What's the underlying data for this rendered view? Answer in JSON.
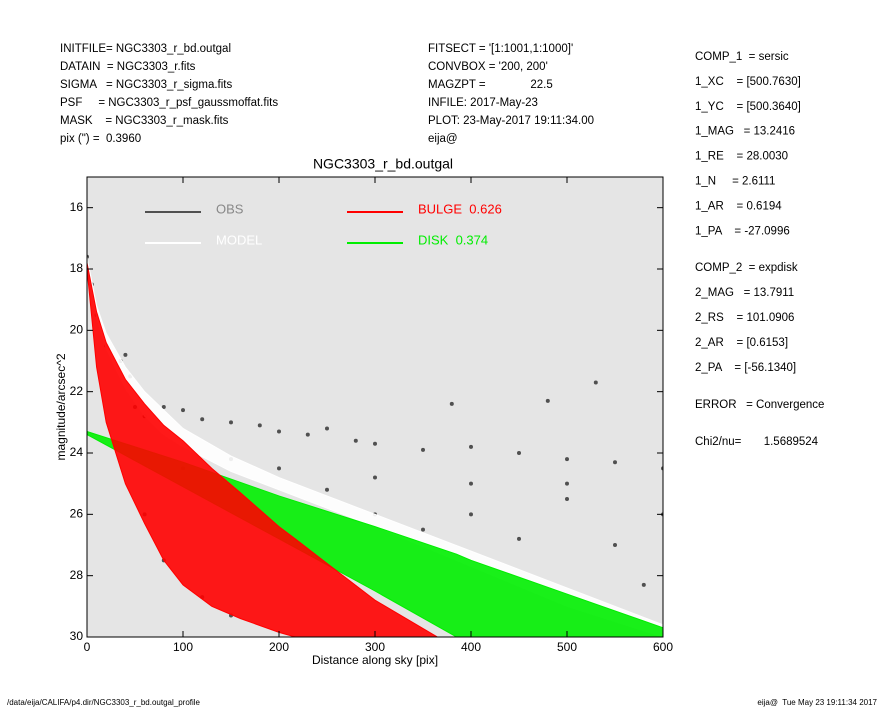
{
  "header": {
    "left": [
      "INITFILE= NGC3303_r_bd.outgal",
      "DATAIN  = NGC3303_r.fits",
      "SIGMA   = NGC3303_r_sigma.fits",
      "PSF     = NGC3303_r_psf_gaussmoffat.fits",
      "MASK    = NGC3303_r_mask.fits",
      "pix (\") =  0.3960"
    ],
    "middle": [
      "FITSECT = '[1:1001,1:1000]'",
      "CONVBOX = '200, 200'",
      "MAGZPT =              22.5",
      "INFILE: 2017-May-23",
      "PLOT: 23-May-2017 19:11:34.00",
      "eija@"
    ]
  },
  "components": {
    "comp_1": [
      "COMP_1  = sersic",
      "1_XC    = [500.7630]",
      "1_YC    = [500.3640]",
      "1_MAG   = 13.2416",
      "1_RE    = 28.0030",
      "1_N     = 2.6111",
      "1_AR    = 0.6194",
      "1_PA    = -27.0996"
    ],
    "comp_2": [
      "COMP_2  = expdisk",
      "2_MAG   = 13.7911",
      "2_RS    = 101.0906",
      "2_AR    = [0.6153]",
      "2_PA    = [-56.1340]"
    ],
    "error": "ERROR   = Convergence",
    "chi2": "Chi2/nu=       1.5689524"
  },
  "footer": {
    "path": "/data/eija/CALIFA/p4.dir/NGC3303_r_bd.outgal_profile",
    "stamp": "eija@  Tue May 23 19:11:34 2017"
  },
  "chart_data": {
    "type": "scatter",
    "title": "NGC3303_r_bd.outgal",
    "x_label": "Distance along sky [pix]",
    "y_label": "magnitude/arcsec^2",
    "xlim": [
      0,
      600
    ],
    "ylim": [
      15,
      30
    ],
    "y_inverted": true,
    "xticks": [
      0,
      100,
      200,
      300,
      400,
      500,
      600
    ],
    "yticks": [
      16,
      18,
      20,
      22,
      24,
      26,
      28,
      30
    ],
    "background": "#e5e5e5",
    "series": [
      {
        "name": "OBS",
        "type": "scatter",
        "color": "#505050",
        "x": [
          0,
          5,
          10,
          20,
          35,
          40,
          45,
          50,
          60,
          80,
          100,
          120,
          150,
          180,
          200,
          230,
          250,
          280,
          300,
          350,
          380,
          400,
          450,
          480,
          500,
          530,
          550,
          600,
          60,
          80,
          120,
          150,
          200,
          250,
          300,
          350,
          400,
          450,
          500,
          550,
          580,
          600,
          100,
          150,
          300,
          400,
          500
        ],
        "y": [
          17.6,
          18.5,
          19.5,
          20.5,
          21,
          20.8,
          21.5,
          22.5,
          22.8,
          22.5,
          22.6,
          22.9,
          23,
          23.1,
          23.3,
          23.4,
          23.2,
          23.6,
          23.7,
          23.9,
          22.4,
          23.8,
          24,
          22.3,
          24.2,
          21.7,
          24.3,
          24.5,
          26,
          27.5,
          28.7,
          29.3,
          24.5,
          25.2,
          26,
          26.5,
          26,
          26.8,
          25.5,
          27,
          28.3,
          26,
          24.5,
          24.2,
          24.8,
          25,
          25
        ]
      },
      {
        "name": "MODEL",
        "type": "band",
        "color": "#ffffff",
        "x": [
          0,
          10,
          20,
          40,
          60,
          80,
          100,
          150,
          200,
          300,
          400,
          500,
          600
        ],
        "y_bright": [
          17.6,
          19.2,
          20.1,
          21.2,
          22.0,
          22.6,
          23.2,
          24.1,
          24.8,
          26.0,
          27.2,
          28.4,
          29.6
        ],
        "y_faint": [
          17.8,
          19.6,
          20.6,
          21.9,
          22.8,
          23.4,
          23.8,
          24.6,
          25.2,
          26.4,
          27.7,
          29.0,
          30
        ]
      },
      {
        "name": "DISK  0.374",
        "type": "band",
        "color": "#00ee00",
        "x": [
          0,
          100,
          200,
          300,
          385,
          400,
          500,
          600
        ],
        "y_bright": [
          23.3,
          24.3,
          25.4,
          26.4,
          27.3,
          27.5,
          28.6,
          29.7
        ],
        "y_faint": [
          23.4,
          25.1,
          26.8,
          28.5,
          30,
          30,
          30,
          30
        ]
      },
      {
        "name": "BULGE  0.626",
        "type": "band",
        "color": "#ff0000",
        "x": [
          0,
          10,
          20,
          40,
          60,
          80,
          100,
          130,
          160,
          200,
          217,
          250,
          300,
          365
        ],
        "y_bright": [
          17.8,
          19.4,
          20.4,
          21.6,
          22.4,
          23.1,
          23.6,
          24.5,
          25.3,
          26.4,
          26.8,
          27.6,
          28.8,
          30
        ],
        "y_faint": [
          18.0,
          21.2,
          23.0,
          25.0,
          26.3,
          27.5,
          28.3,
          29.0,
          29.4,
          29.85,
          30,
          30,
          30,
          30
        ]
      }
    ]
  }
}
